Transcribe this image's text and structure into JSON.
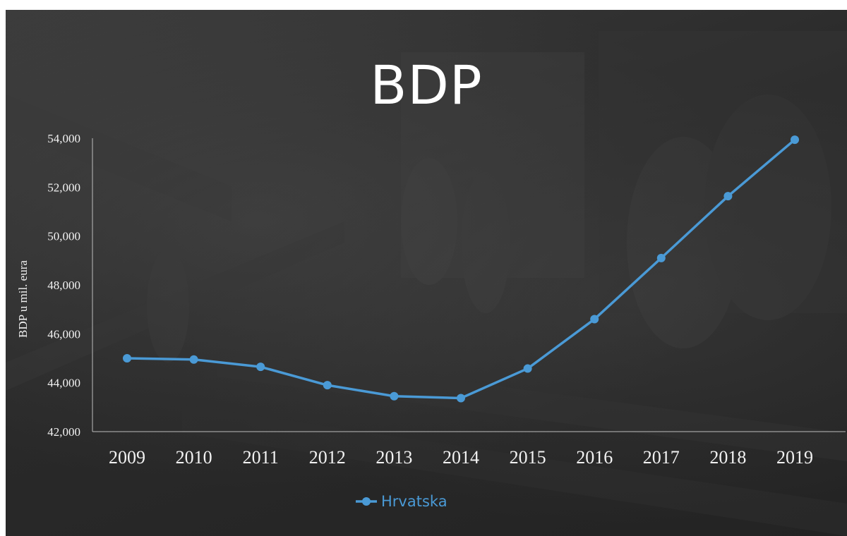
{
  "chart_data": {
    "type": "line",
    "title": "BDP",
    "ylabel": "BDP u mil. eura",
    "xlabel": "",
    "x": [
      "2009",
      "2010",
      "2011",
      "2012",
      "2013",
      "2014",
      "2015",
      "2016",
      "2017",
      "2018",
      "2019"
    ],
    "series": [
      {
        "name": "Hrvatska",
        "color": "#4a9ad6",
        "values": [
          45000,
          44950,
          44650,
          43900,
          43450,
          43370,
          44580,
          46600,
          49100,
          51630,
          53940
        ]
      }
    ],
    "ylim": [
      42000,
      54000
    ],
    "yticks": [
      "42,000",
      "44,000",
      "46,000",
      "48,000",
      "50,000",
      "52,000",
      "54,000"
    ],
    "ytick_values": [
      42000,
      44000,
      46000,
      48000,
      50000,
      52000,
      54000
    ],
    "grid": false,
    "legend_position": "bottom"
  }
}
